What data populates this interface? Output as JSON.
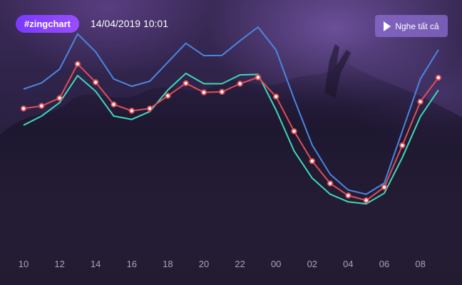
{
  "header": {
    "badge": "#zingchart",
    "datetime": "14/04/2019 10:01",
    "play_all_label": "Nghe tất cả",
    "play_icon": "play-icon"
  },
  "colors": {
    "series_1": "#4a86e0",
    "series_2": "#df4e57",
    "series_3": "#3fd9b3",
    "badge": "#8a45ff",
    "tick_label": "#a9a3b8"
  },
  "chart_data": {
    "type": "line",
    "x": [
      "10",
      "11",
      "12",
      "13",
      "14",
      "15",
      "16",
      "17",
      "18",
      "19",
      "20",
      "21",
      "22",
      "23",
      "00",
      "01",
      "02",
      "03",
      "04",
      "05",
      "06",
      "07",
      "08",
      "09"
    ],
    "tick_labels": [
      "10",
      "12",
      "14",
      "16",
      "18",
      "20",
      "22",
      "00",
      "02",
      "04",
      "06",
      "08"
    ],
    "ylim": [
      0,
      100
    ],
    "grid": false,
    "legend": "none",
    "series": [
      {
        "color": "#4a86e0",
        "markers": false,
        "values": [
          64.8,
          67.2,
          72.7,
          86.6,
          79.5,
          68.8,
          65.9,
          67.9,
          75.4,
          82.9,
          78.0,
          78.1,
          83.9,
          89.3,
          80.2,
          60.9,
          42.7,
          31.1,
          24.9,
          23.2,
          27.6,
          48.2,
          68.8,
          80.3
        ]
      },
      {
        "color": "#df4e57",
        "markers": true,
        "values": [
          57.1,
          58.1,
          61.2,
          74.7,
          67.5,
          58.7,
          56.2,
          57.1,
          62.1,
          67.1,
          63.5,
          63.7,
          66.9,
          69.4,
          61.8,
          48.1,
          36.3,
          27.5,
          22.7,
          20.8,
          26.0,
          42.5,
          59.8,
          69.3
        ]
      },
      {
        "color": "#3fd9b3",
        "markers": false,
        "values": [
          50.5,
          54.1,
          59.4,
          70.1,
          63.9,
          54.1,
          52.8,
          55.9,
          64.4,
          71.0,
          66.9,
          66.9,
          70.4,
          70.6,
          56.5,
          40.3,
          29.6,
          23.2,
          20.2,
          19.4,
          23.6,
          37.7,
          53.9,
          64.4
        ]
      }
    ]
  }
}
